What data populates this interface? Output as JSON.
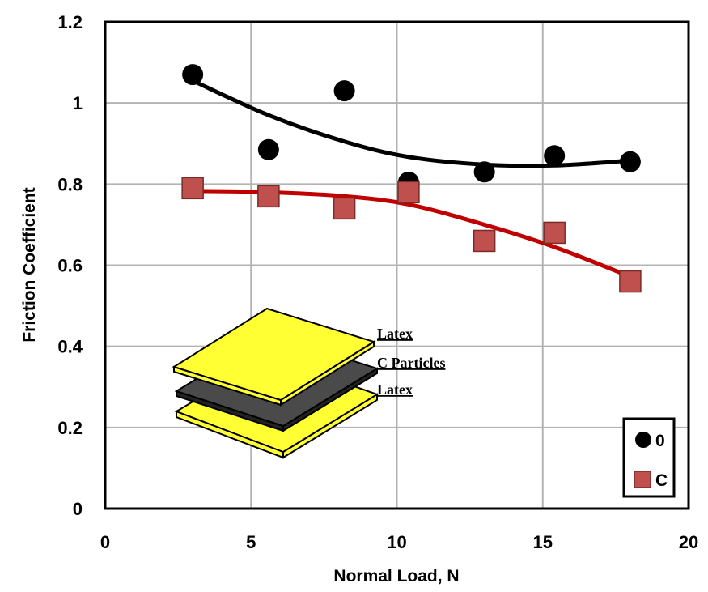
{
  "chart_data": {
    "type": "scatter",
    "xlabel": "Normal Load, N",
    "ylabel": "Friction Coefficient",
    "xlim": [
      0,
      20
    ],
    "ylim": [
      0,
      1.2
    ],
    "x_ticks": [
      "0",
      "5",
      "10",
      "15",
      "20"
    ],
    "y_ticks": [
      "0",
      "0.2",
      "0.4",
      "0.6",
      "0.8",
      "1",
      "1.2"
    ],
    "grid": true,
    "legend_position": "bottom-right",
    "series": [
      {
        "name": "0",
        "marker": "circle",
        "color": "#000000",
        "x": [
          3,
          5.6,
          8.2,
          10.4,
          13,
          15.4,
          18
        ],
        "y": [
          1.07,
          0.885,
          1.03,
          0.805,
          0.83,
          0.87,
          0.855
        ],
        "trend": [
          1.055,
          0.97,
          0.905,
          0.867,
          0.848,
          0.846,
          0.858
        ]
      },
      {
        "name": "C",
        "marker": "square",
        "color": "#c0504d",
        "trend_color": "#c00000",
        "x": [
          3,
          5.6,
          8.2,
          10.4,
          13,
          15.4,
          18
        ],
        "y": [
          0.79,
          0.77,
          0.74,
          0.78,
          0.66,
          0.68,
          0.56
        ],
        "trend": [
          0.783,
          0.78,
          0.77,
          0.75,
          0.7,
          0.645,
          0.572
        ]
      }
    ],
    "inset": {
      "labels": [
        "Latex",
        "C Particles",
        "Latex"
      ],
      "layer_colors": [
        "#ffff33",
        "#333333",
        "#ffff33"
      ]
    }
  }
}
